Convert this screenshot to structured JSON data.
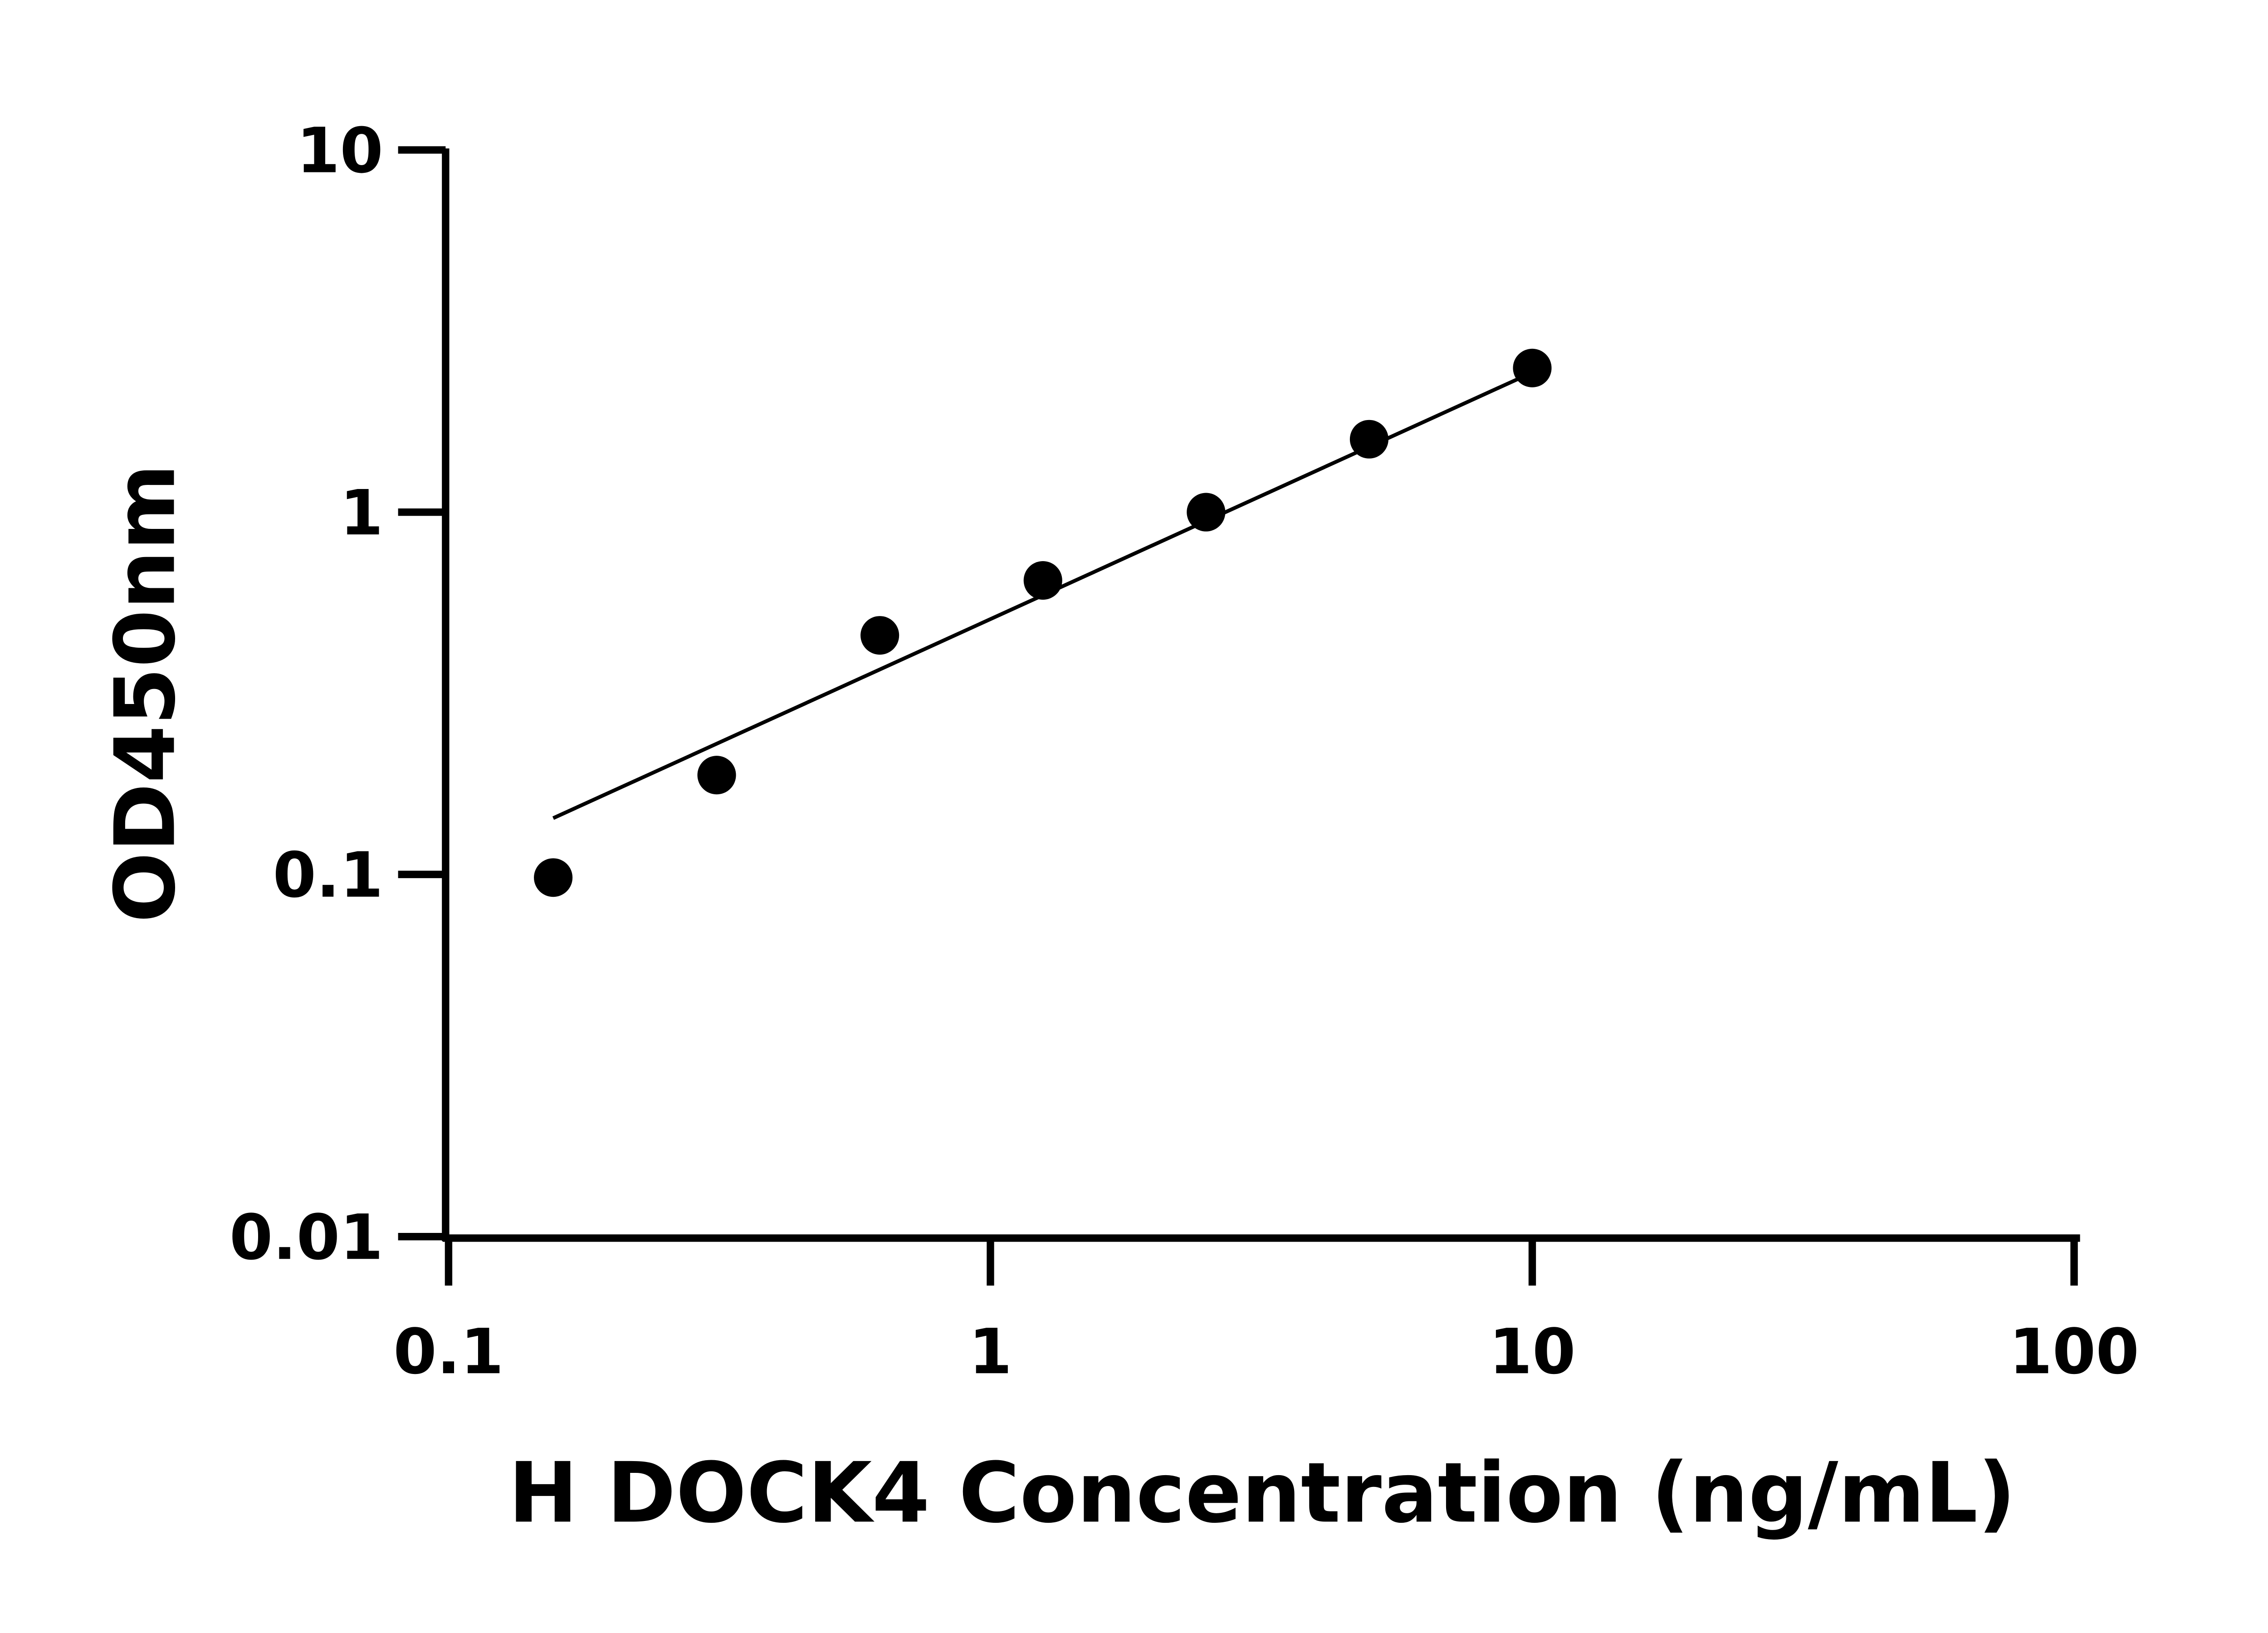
{
  "chart_data": {
    "type": "scatter",
    "title": "",
    "xlabel": "H DOCK4 Concentration (ng/mL)",
    "ylabel": "OD450nm",
    "x_scale": "log",
    "y_scale": "log",
    "xlim": [
      0.1,
      100
    ],
    "ylim": [
      0.01,
      10
    ],
    "x_ticks": [
      "0.1",
      "1",
      "10",
      "100"
    ],
    "y_ticks": [
      "0.01",
      "0.1",
      "1",
      "10"
    ],
    "x_tick_values": [
      0.1,
      1,
      10,
      100
    ],
    "y_tick_values": [
      0.01,
      0.1,
      1,
      10
    ],
    "grid": false,
    "series": [
      {
        "x": [
          0.156,
          0.3125,
          0.625,
          1.25,
          2.5,
          5,
          10
        ],
        "y": [
          0.098,
          0.188,
          0.457,
          0.648,
          1.0,
          1.59,
          2.5
        ]
      }
    ],
    "fit_line": {
      "x": [
        0.156,
        10
      ],
      "y": [
        0.143,
        2.43
      ]
    },
    "colors": {
      "points": "#000000",
      "line": "#000000",
      "axes": "#000000"
    }
  }
}
